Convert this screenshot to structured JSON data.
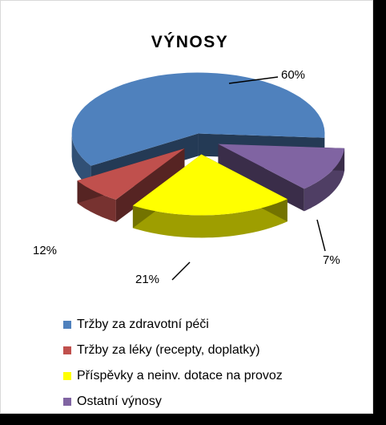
{
  "chart_data": {
    "type": "pie",
    "title": "VÝNOSY",
    "labels": [
      "Tržby za zdravotní péči",
      "Tržby za léky (recepty, doplatky)",
      "Příspěvky a neinv. dotace na provoz",
      "Ostatní výnosy"
    ],
    "values": [
      60,
      7,
      21,
      12
    ],
    "data_labels": [
      "60%",
      "7%",
      "21%",
      "12%"
    ],
    "colors": [
      "#4f81bd",
      "#c0504d",
      "#ffff00",
      "#8064a2"
    ],
    "style": "3d-exploded",
    "legend_position": "bottom"
  }
}
